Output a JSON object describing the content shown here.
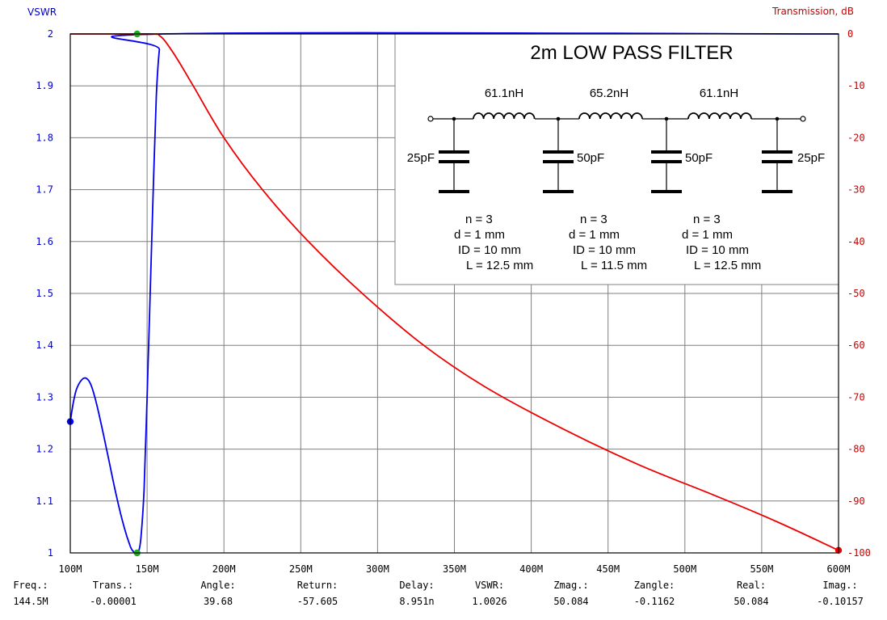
{
  "chart_data": {
    "type": "line",
    "title": "",
    "x": {
      "ticks": [
        "100M",
        "150M",
        "200M",
        "250M",
        "300M",
        "350M",
        "400M",
        "450M",
        "500M",
        "550M",
        "600M"
      ],
      "range": [
        100,
        600
      ],
      "unit": "MHz"
    },
    "y_left": {
      "label": "VSWR",
      "ticks": [
        "2",
        "1.9",
        "1.8",
        "1.7",
        "1.6",
        "1.5",
        "1.4",
        "1.3",
        "1.2",
        "1.1",
        "1"
      ],
      "range": [
        1,
        2
      ],
      "color": "#0000cc"
    },
    "y_right": {
      "label": "Transmission, dB",
      "ticks": [
        "0",
        "-10",
        "-20",
        "-30",
        "-40",
        "-50",
        "-60",
        "-70",
        "-80",
        "-90",
        "-100"
      ],
      "range": [
        -100,
        0
      ],
      "color": "#cc0000"
    },
    "grid": true,
    "series": [
      {
        "name": "VSWR",
        "axis": "left",
        "color": "#0000ee",
        "points": [
          [
            100,
            1.253
          ],
          [
            102,
            1.29
          ],
          [
            104,
            1.315
          ],
          [
            107,
            1.332
          ],
          [
            110,
            1.337
          ],
          [
            113,
            1.327
          ],
          [
            116,
            1.3
          ],
          [
            120,
            1.25
          ],
          [
            125,
            1.18
          ],
          [
            130,
            1.11
          ],
          [
            135,
            1.05
          ],
          [
            139,
            1.013
          ],
          [
            141,
            1.003
          ],
          [
            143,
            1.0
          ],
          [
            144.5,
            1.003
          ],
          [
            146,
            1.03
          ],
          [
            148,
            1.12
          ],
          [
            150,
            1.3
          ],
          [
            152,
            1.5
          ],
          [
            154,
            1.7
          ],
          [
            156,
            1.88
          ],
          [
            158,
            1.97
          ],
          [
            160,
            2.0
          ],
          [
            600,
            2.0
          ]
        ]
      },
      {
        "name": "Transmission",
        "axis": "right",
        "color": "#ee0000",
        "points": [
          [
            100,
            0
          ],
          [
            140,
            0
          ],
          [
            155,
            -0.01
          ],
          [
            158,
            -0.3
          ],
          [
            162,
            -1.5
          ],
          [
            170,
            -5
          ],
          [
            180,
            -10
          ],
          [
            200,
            -20
          ],
          [
            225,
            -30
          ],
          [
            255,
            -40
          ],
          [
            290,
            -50
          ],
          [
            330,
            -60
          ],
          [
            370,
            -68
          ],
          [
            420,
            -76
          ],
          [
            470,
            -83
          ],
          [
            520,
            -89
          ],
          [
            560,
            -94
          ],
          [
            600,
            -99.5
          ]
        ]
      }
    ],
    "markers": [
      {
        "x": 100,
        "y": 1.253,
        "axis": "left",
        "color": "#0000ee"
      },
      {
        "x": 143.5,
        "y": 2.0,
        "axis": "left",
        "color": "#22aa22"
      },
      {
        "x": 143.5,
        "y": 1.0,
        "axis": "left",
        "color": "#22aa22"
      },
      {
        "x": 600,
        "y": -99.5,
        "axis": "right",
        "color": "#ee0000"
      }
    ]
  },
  "schematic": {
    "title": "2m LOW PASS FILTER",
    "inductors": [
      "61.1nH",
      "65.2nH",
      "61.1nH"
    ],
    "capacitors": [
      "25pF",
      "50pF",
      "50pF",
      "25pF"
    ],
    "coils": [
      {
        "n": "n = 3",
        "d": "d = 1 mm",
        "id": "ID = 10 mm",
        "l": "L = 12.5 mm"
      },
      {
        "n": "n = 3",
        "d": "d = 1 mm",
        "id": "ID = 10 mm",
        "l": "L = 11.5 mm"
      },
      {
        "n": "n = 3",
        "d": "d = 1 mm",
        "id": "ID = 10 mm",
        "l": "L = 12.5 mm"
      }
    ]
  },
  "readout": [
    {
      "label": "Freq.:",
      "value": "144.5M"
    },
    {
      "label": "Trans.:",
      "value": "-0.00001"
    },
    {
      "label": "Angle:",
      "value": "39.68"
    },
    {
      "label": "Return:",
      "value": "-57.605"
    },
    {
      "label": "Delay:",
      "value": "8.951n"
    },
    {
      "label": "VSWR:",
      "value": "1.0026"
    },
    {
      "label": "Zmag.:",
      "value": "50.084"
    },
    {
      "label": "Zangle:",
      "value": "-0.1162"
    },
    {
      "label": "Real:",
      "value": "50.084"
    },
    {
      "label": "Imag.:",
      "value": "-0.10157"
    }
  ]
}
